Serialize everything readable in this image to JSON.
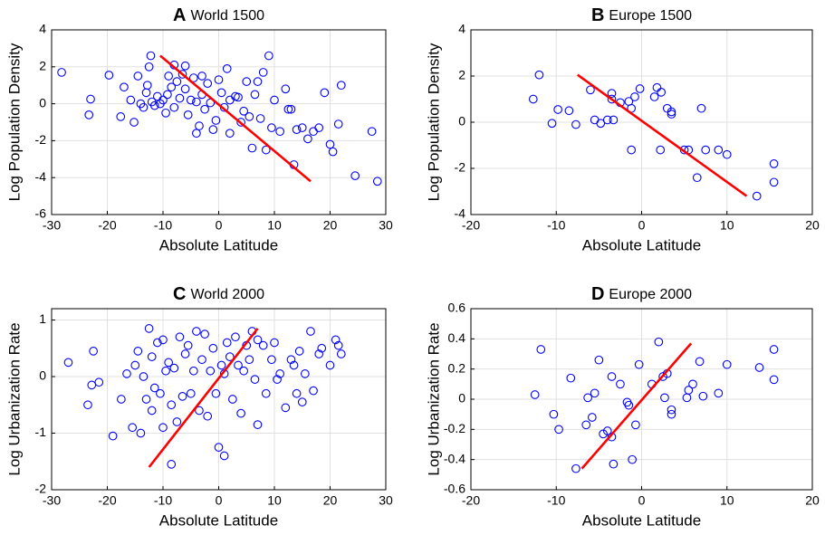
{
  "chart_data": [
    {
      "type": "scatter",
      "panel_label": "A",
      "title": "World 1500",
      "xlabel": "Absolute Latitude",
      "ylabel": "Log Population Density",
      "x": [
        -28.2,
        -23,
        -23.3,
        -19.7,
        -17.6,
        -17,
        -15.8,
        -15.2,
        -14.5,
        -14,
        -13.5,
        -13,
        -12.8,
        -12.5,
        -12.2,
        -12,
        -11.5,
        -11,
        -10.5,
        -10,
        -9.5,
        -9.2,
        -9,
        -8.5,
        -8,
        -8,
        -7.5,
        -7,
        -6.5,
        -6,
        -6,
        -5.5,
        -5,
        -4.5,
        -4,
        -4,
        -3.5,
        -3,
        -3,
        -2.5,
        -2,
        -1.5,
        -1,
        -0.5,
        0,
        0.5,
        1,
        1.5,
        2,
        2,
        3,
        3.5,
        4,
        4.5,
        5,
        5.5,
        6,
        6.5,
        7,
        7.5,
        8,
        8.5,
        9,
        9.5,
        10,
        11,
        12,
        12.5,
        13,
        13.5,
        14,
        15,
        16,
        17,
        18,
        19,
        20,
        20.5,
        21.5,
        22,
        24.5,
        27.5,
        28.5
      ],
      "y": [
        1.7,
        0.25,
        -0.6,
        1.55,
        -0.7,
        0.9,
        0.2,
        -1.0,
        1.5,
        0,
        -0.2,
        0.6,
        1.0,
        2.0,
        2.6,
        0.1,
        -0.1,
        0.4,
        0,
        0.2,
        -0.5,
        0.5,
        1.5,
        0.9,
        2.1,
        -0.2,
        1.2,
        0.3,
        1.6,
        0.8,
        2.05,
        -0.6,
        0.2,
        1.4,
        -1.6,
        0.1,
        -1.2,
        1.5,
        0.5,
        -0.3,
        1.1,
        0.05,
        -1.4,
        -0.9,
        1.3,
        0.6,
        -0.2,
        1.9,
        0.2,
        -1.6,
        0.4,
        0.35,
        -1.0,
        -0.4,
        1.2,
        -0.7,
        -2.4,
        0.5,
        1.2,
        -0.8,
        1.7,
        -2.5,
        2.6,
        -1.3,
        0.2,
        -1.5,
        0.8,
        -0.3,
        -0.3,
        -3.3,
        -1.4,
        -1.3,
        -1.9,
        -1.5,
        -1.3,
        0.6,
        -2.2,
        -2.6,
        -1.1,
        1.0,
        -3.9,
        -1.5,
        -4.2
      ],
      "color": "#0000ff",
      "fit": {
        "x": [
          -10.5,
          16.5
        ],
        "y": [
          2.6,
          -4.2
        ],
        "color": "#ff0000"
      },
      "xlim": [
        -30,
        30
      ],
      "ylim": [
        -6,
        4
      ],
      "xticks": [
        -30,
        -20,
        -10,
        0,
        10,
        20,
        30
      ],
      "yticks": [
        -6,
        -4,
        -2,
        0,
        2,
        4
      ],
      "grid": true
    },
    {
      "type": "scatter",
      "panel_label": "B",
      "title": "Europe 1500",
      "xlabel": "Absolute Latitude",
      "ylabel": "Log Population Density",
      "x": [
        -12.7,
        -12,
        -10.5,
        -9.8,
        -8.5,
        -7.7,
        -6,
        -5.5,
        -4.8,
        -4,
        -3.5,
        -3.3,
        -3.5,
        -2.5,
        -1.5,
        -1.2,
        -0.8,
        -0.2,
        -1.2,
        1.5,
        1.8,
        2.3,
        2.2,
        3,
        3.5,
        3.5,
        5.0,
        5.5,
        6.5,
        7,
        7.5,
        9,
        10,
        13.5,
        15.5,
        15.5
      ],
      "y": [
        1.0,
        2.05,
        -0.05,
        0.55,
        0.5,
        -0.1,
        1.4,
        0.1,
        -0.05,
        0.1,
        1.25,
        0.1,
        1.0,
        0.85,
        0.9,
        0.6,
        1.1,
        1.45,
        -1.2,
        1.1,
        1.5,
        1.3,
        -1.2,
        0.6,
        0.45,
        0.35,
        -1.2,
        -1.2,
        -2.4,
        0.6,
        -1.2,
        -1.2,
        -1.4,
        -3.2,
        -1.8,
        -2.6
      ],
      "color": "#0000ff",
      "fit": {
        "x": [
          -7.5,
          12.3
        ],
        "y": [
          2.05,
          -3.2
        ],
        "color": "#ff0000"
      },
      "xlim": [
        -20,
        20
      ],
      "ylim": [
        -4,
        4
      ],
      "xticks": [
        -20,
        -10,
        0,
        10,
        20
      ],
      "yticks": [
        -4,
        -2,
        0,
        2,
        4
      ],
      "grid": true
    },
    {
      "type": "scatter",
      "panel_label": "C",
      "title": "World 2000",
      "xlabel": "Absolute Latitude",
      "ylabel": "Log Urbanization Rate",
      "x": [
        -27,
        -23.5,
        -22.5,
        -22.8,
        -21.5,
        -19,
        -17.5,
        -16.5,
        -15.5,
        -15,
        -14.5,
        -14,
        -13.5,
        -13,
        -12.5,
        -12,
        -12,
        -11.5,
        -11,
        -10.5,
        -10,
        -10,
        -9.5,
        -9,
        -8.5,
        -8.5,
        -8,
        -7.5,
        -7,
        -6.5,
        -6,
        -5.5,
        -5,
        -4.5,
        -4,
        -3.5,
        -3,
        -2.5,
        -2,
        -1.5,
        -1,
        -0.5,
        0,
        0.5,
        1,
        1,
        1.5,
        2,
        2.5,
        3,
        3.5,
        4,
        4.5,
        5,
        5.5,
        6,
        6.5,
        7,
        7,
        8,
        8.5,
        9.5,
        10,
        10.5,
        11,
        12,
        13,
        13.5,
        14,
        14.5,
        15,
        15.5,
        16.5,
        17,
        18,
        18.5,
        20,
        21,
        21.5,
        22
      ],
      "y": [
        0.25,
        -0.5,
        0.45,
        -0.15,
        -0.1,
        -1.05,
        -0.4,
        0.05,
        -0.9,
        0.2,
        0.45,
        -1.0,
        0,
        -0.4,
        0.85,
        -0.6,
        0.35,
        -0.2,
        0.6,
        -0.3,
        0.65,
        -0.9,
        0.1,
        0.25,
        -0.5,
        -1.55,
        0.15,
        -0.8,
        0.7,
        -0.35,
        0.4,
        0.55,
        -0.3,
        0.1,
        0.8,
        -0.6,
        0.3,
        0.75,
        -0.7,
        0.1,
        0.5,
        -0.3,
        -1.25,
        0.2,
        -1.4,
        0.05,
        0.6,
        0.35,
        -0.4,
        0.7,
        0.2,
        -0.65,
        0.1,
        0.55,
        0.3,
        0.8,
        -0.05,
        0.65,
        -0.85,
        0.55,
        -0.3,
        0.3,
        0.6,
        -0.05,
        0.05,
        -0.55,
        0.3,
        0.2,
        -0.3,
        0.45,
        -0.45,
        0.05,
        0.8,
        -0.25,
        0.4,
        0.5,
        0.2,
        0.65,
        0.55,
        0.4
      ],
      "color": "#0000ff",
      "fit": {
        "x": [
          -12.5,
          7
        ],
        "y": [
          -1.6,
          0.85
        ],
        "color": "#ff0000"
      },
      "xlim": [
        -30,
        30
      ],
      "ylim": [
        -2,
        1.2
      ],
      "xticks": [
        -30,
        -20,
        -10,
        0,
        10,
        20,
        30
      ],
      "yticks": [
        -2,
        -1,
        0,
        1
      ],
      "grid": true
    },
    {
      "type": "scatter",
      "panel_label": "D",
      "title": "Europe 2000",
      "xlabel": "Absolute Latitude",
      "ylabel": "Log Urbanization Rate",
      "x": [
        -12.5,
        -11.8,
        -10.3,
        -9.7,
        -8.3,
        -7.7,
        -6.5,
        -6.3,
        -5.8,
        -5.5,
        -5,
        -4.5,
        -4,
        -3.5,
        -3.5,
        -3.3,
        -2.5,
        -1.7,
        -1.5,
        -1.1,
        -0.7,
        -0.3,
        1.2,
        2,
        2.5,
        2.7,
        3,
        3.5,
        3.5,
        5.3,
        5.5,
        6,
        6.8,
        7.2,
        9,
        10,
        13.8,
        15.5,
        15.5
      ],
      "y": [
        0.03,
        0.33,
        -0.1,
        -0.2,
        0.14,
        -0.46,
        -0.17,
        0.01,
        -0.12,
        0.04,
        0.26,
        -0.23,
        -0.21,
        -0.25,
        0.15,
        -0.43,
        0.1,
        -0.02,
        -0.04,
        -0.4,
        -0.17,
        0.23,
        0.1,
        0.38,
        0.15,
        0.01,
        0.17,
        -0.07,
        -0.1,
        0.01,
        0.06,
        0.1,
        0.25,
        0.02,
        0.04,
        0.23,
        0.21,
        0.33,
        0.13
      ],
      "color": "#0000ff",
      "fit": {
        "x": [
          -7,
          5.8
        ],
        "y": [
          -0.46,
          0.37
        ],
        "color": "#ff0000"
      },
      "xlim": [
        -20,
        20
      ],
      "ylim": [
        -0.6,
        0.6
      ],
      "xticks": [
        -20,
        -10,
        0,
        10,
        20
      ],
      "yticks": [
        -0.6,
        -0.4,
        -0.2,
        0,
        0.2,
        0.4,
        0.6
      ],
      "grid": true
    }
  ]
}
